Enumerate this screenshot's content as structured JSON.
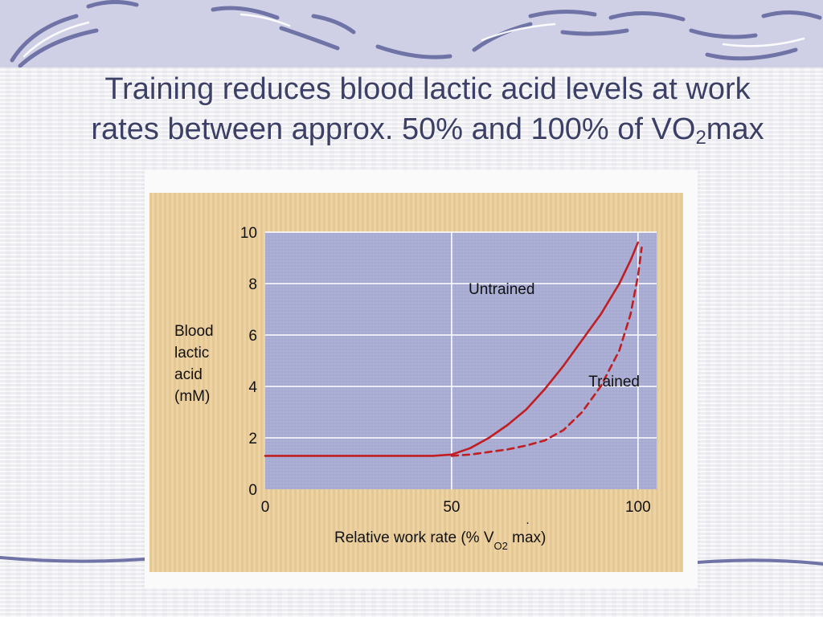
{
  "slide": {
    "title_line1": "Training reduces blood lactic acid levels at work",
    "title_line2_prefix": "rates between approx. 50% and 100% of VO",
    "title_subscript": "2",
    "title_line2_suffix": "max"
  },
  "colors": {
    "title": "#3c3f66",
    "plot_background": "#a9acd3",
    "figure_border": "#e7c898",
    "curve": "#c01e22",
    "grid": "#ffffff"
  },
  "chart_data": {
    "type": "line",
    "xlabel": "Relative work rate (% V̇O2 max)",
    "xlabel_prefix": "Relative work rate (% V",
    "xlabel_sub": "O2",
    "xlabel_suffix": " max)",
    "ylabel_lines": [
      "Blood",
      "lactic",
      "acid",
      "(mM)"
    ],
    "xlim": [
      0,
      105
    ],
    "ylim": [
      0,
      10
    ],
    "x_ticks": [
      "0",
      "50",
      "100"
    ],
    "y_ticks": [
      "0",
      "2",
      "4",
      "6",
      "8",
      "10"
    ],
    "grid": true,
    "series": [
      {
        "name": "Untrained",
        "style": "solid",
        "x": [
          0,
          10,
          20,
          30,
          40,
          45,
          50,
          55,
          60,
          65,
          70,
          75,
          80,
          85,
          90,
          95,
          98,
          100
        ],
        "y": [
          1.3,
          1.3,
          1.3,
          1.3,
          1.3,
          1.3,
          1.35,
          1.6,
          2.0,
          2.5,
          3.1,
          3.9,
          4.8,
          5.8,
          6.8,
          8.0,
          8.9,
          9.6
        ]
      },
      {
        "name": "Trained",
        "style": "dashed",
        "x": [
          50,
          55,
          60,
          65,
          70,
          75,
          80,
          85,
          90,
          95,
          98,
          100,
          101
        ],
        "y": [
          1.3,
          1.35,
          1.45,
          1.55,
          1.7,
          1.9,
          2.3,
          3.0,
          4.0,
          5.4,
          6.8,
          8.3,
          9.4
        ]
      }
    ]
  }
}
